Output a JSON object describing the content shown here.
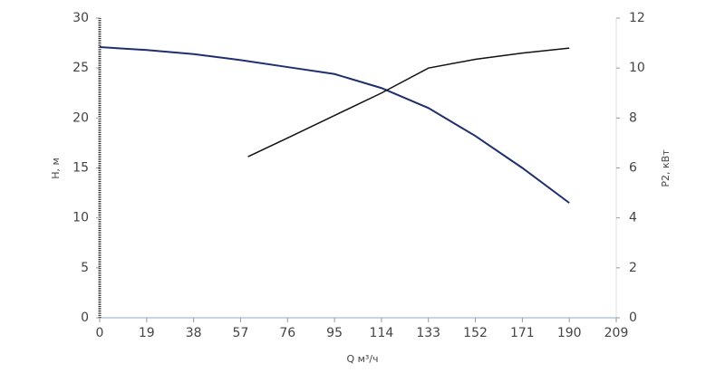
{
  "chart_data": {
    "type": "line",
    "x_label": "Q м³/ч",
    "y_label": "H, м",
    "y2_label": "P2, кВт",
    "xlim": [
      0,
      209
    ],
    "xticks": [
      0,
      19,
      38,
      57,
      76,
      95,
      114,
      133,
      152,
      171,
      190,
      209
    ],
    "ylim": [
      0,
      30
    ],
    "yticks": [
      0,
      5,
      10,
      15,
      20,
      25,
      30
    ],
    "y2lim": [
      0,
      12
    ],
    "y2ticks": [
      0,
      2,
      4,
      6,
      8,
      10,
      12
    ],
    "series": [
      {
        "name": "H",
        "color": "#1f2f6e",
        "axis": "y",
        "x": [
          0,
          19,
          38,
          57,
          76,
          95,
          114,
          133,
          152,
          171,
          190
        ],
        "values": [
          27.1,
          26.8,
          26.4,
          25.8,
          25.1,
          24.4,
          23.0,
          21.0,
          18.2,
          15.0,
          11.5
        ]
      },
      {
        "name": "P2",
        "color": "#111111",
        "axis": "y2",
        "x": [
          60,
          76,
          95,
          114,
          133,
          152,
          171,
          190
        ],
        "values": [
          6.45,
          7.2,
          8.1,
          9.0,
          10.0,
          10.35,
          10.6,
          10.8
        ]
      }
    ]
  }
}
